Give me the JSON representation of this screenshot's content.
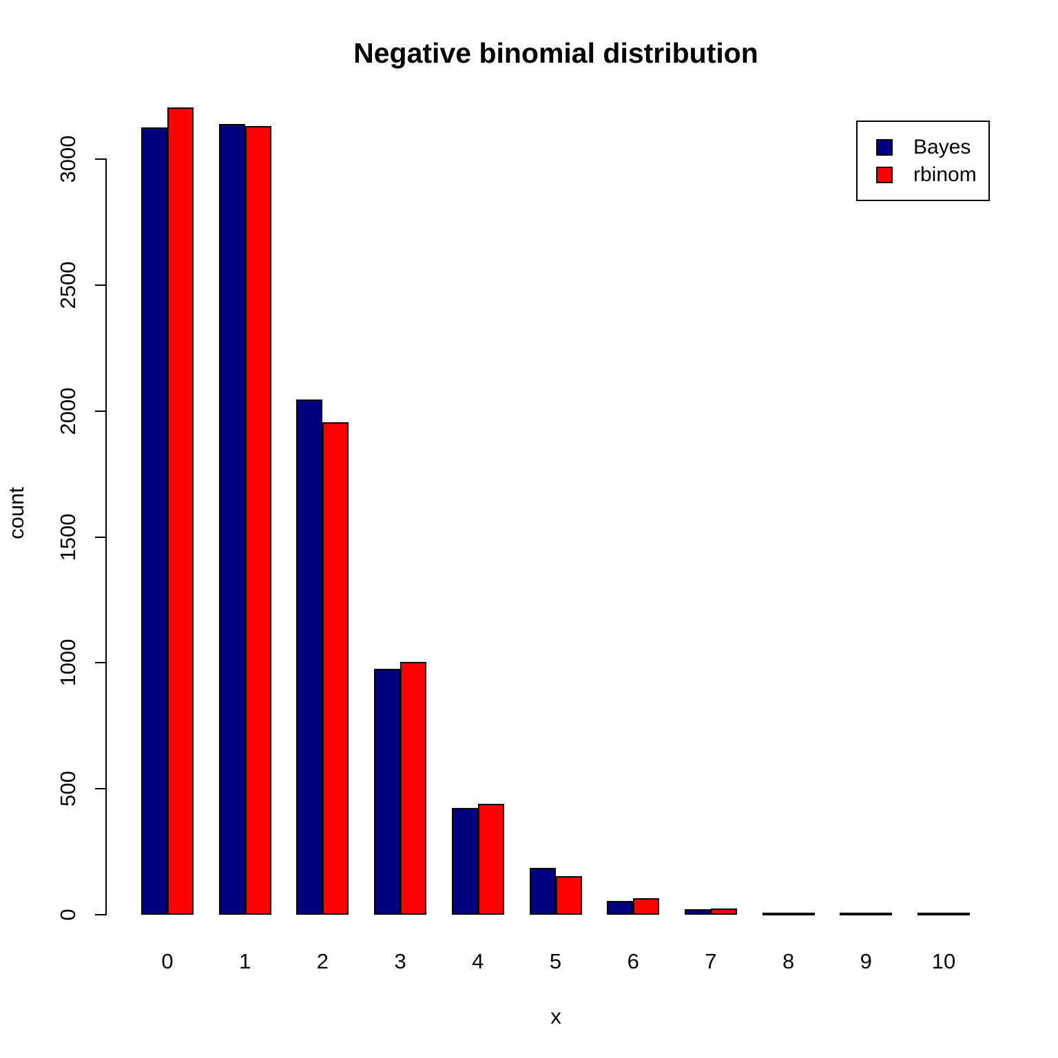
{
  "title": "Negative binomial distribution",
  "colors": {
    "bayes": "#000080",
    "rbinom": "#FF0000",
    "axis": "#000000",
    "background": "#FFFFFF"
  },
  "legend": {
    "items": [
      {
        "label": "Bayes",
        "color": "#000080"
      },
      {
        "label": "rbinom",
        "color": "#FF0000"
      }
    ]
  },
  "chart_data": {
    "type": "bar",
    "title": "Negative binomial distribution",
    "xlabel": "x",
    "ylabel": "count",
    "categories": [
      "0",
      "1",
      "2",
      "3",
      "4",
      "5",
      "6",
      "7",
      "8",
      "9",
      "10"
    ],
    "series": [
      {
        "name": "Bayes",
        "color": "#000080",
        "values": [
          3125,
          3140,
          2045,
          975,
          425,
          185,
          55,
          22,
          9,
          4,
          1
        ]
      },
      {
        "name": "rbinom",
        "color": "#FF0000",
        "values": [
          3205,
          3130,
          1955,
          1005,
          440,
          152,
          66,
          25,
          6,
          4,
          2
        ]
      }
    ],
    "ylim": [
      0,
      3000
    ],
    "yticks": [
      0,
      500,
      1000,
      1500,
      2000,
      2500,
      3000
    ],
    "grid": false,
    "legend_position": "top-right"
  }
}
